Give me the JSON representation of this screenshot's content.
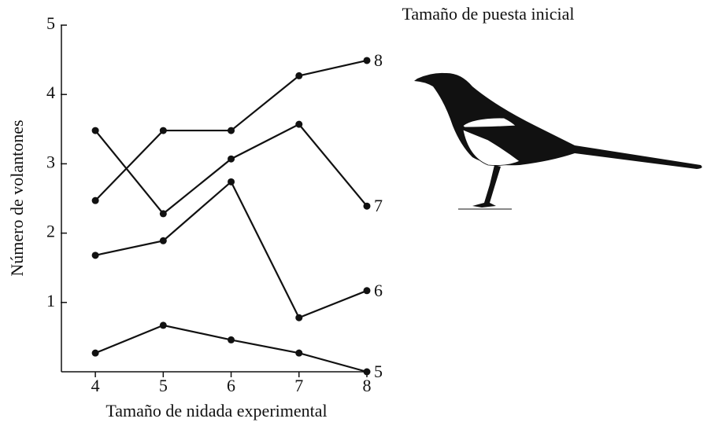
{
  "chart_data": {
    "type": "line",
    "legend_title": "Tamaño de puesta inicial",
    "xlabel": "Tamaño de nidada experimental",
    "ylabel": "Número de volantones",
    "x": [
      4,
      5,
      6,
      7,
      8
    ],
    "series": [
      {
        "name": "8",
        "color": "#111111",
        "values": [
          2.47,
          3.48,
          3.48,
          4.27,
          4.49
        ]
      },
      {
        "name": "7",
        "color": "#111111",
        "values": [
          3.48,
          2.28,
          3.07,
          3.57,
          2.39
        ]
      },
      {
        "name": "6",
        "color": "#111111",
        "values": [
          1.68,
          1.89,
          2.74,
          0.78,
          1.17
        ]
      },
      {
        "name": "5",
        "color": "#111111",
        "values": [
          0.27,
          0.67,
          0.46,
          0.27,
          0.0
        ]
      }
    ],
    "xlim": [
      3.5,
      8
    ],
    "xticks": [
      4,
      5,
      6,
      7,
      8
    ],
    "ylim": [
      0,
      5
    ],
    "yticks": [
      1,
      2,
      3,
      4,
      5
    ],
    "grid": false
  }
}
